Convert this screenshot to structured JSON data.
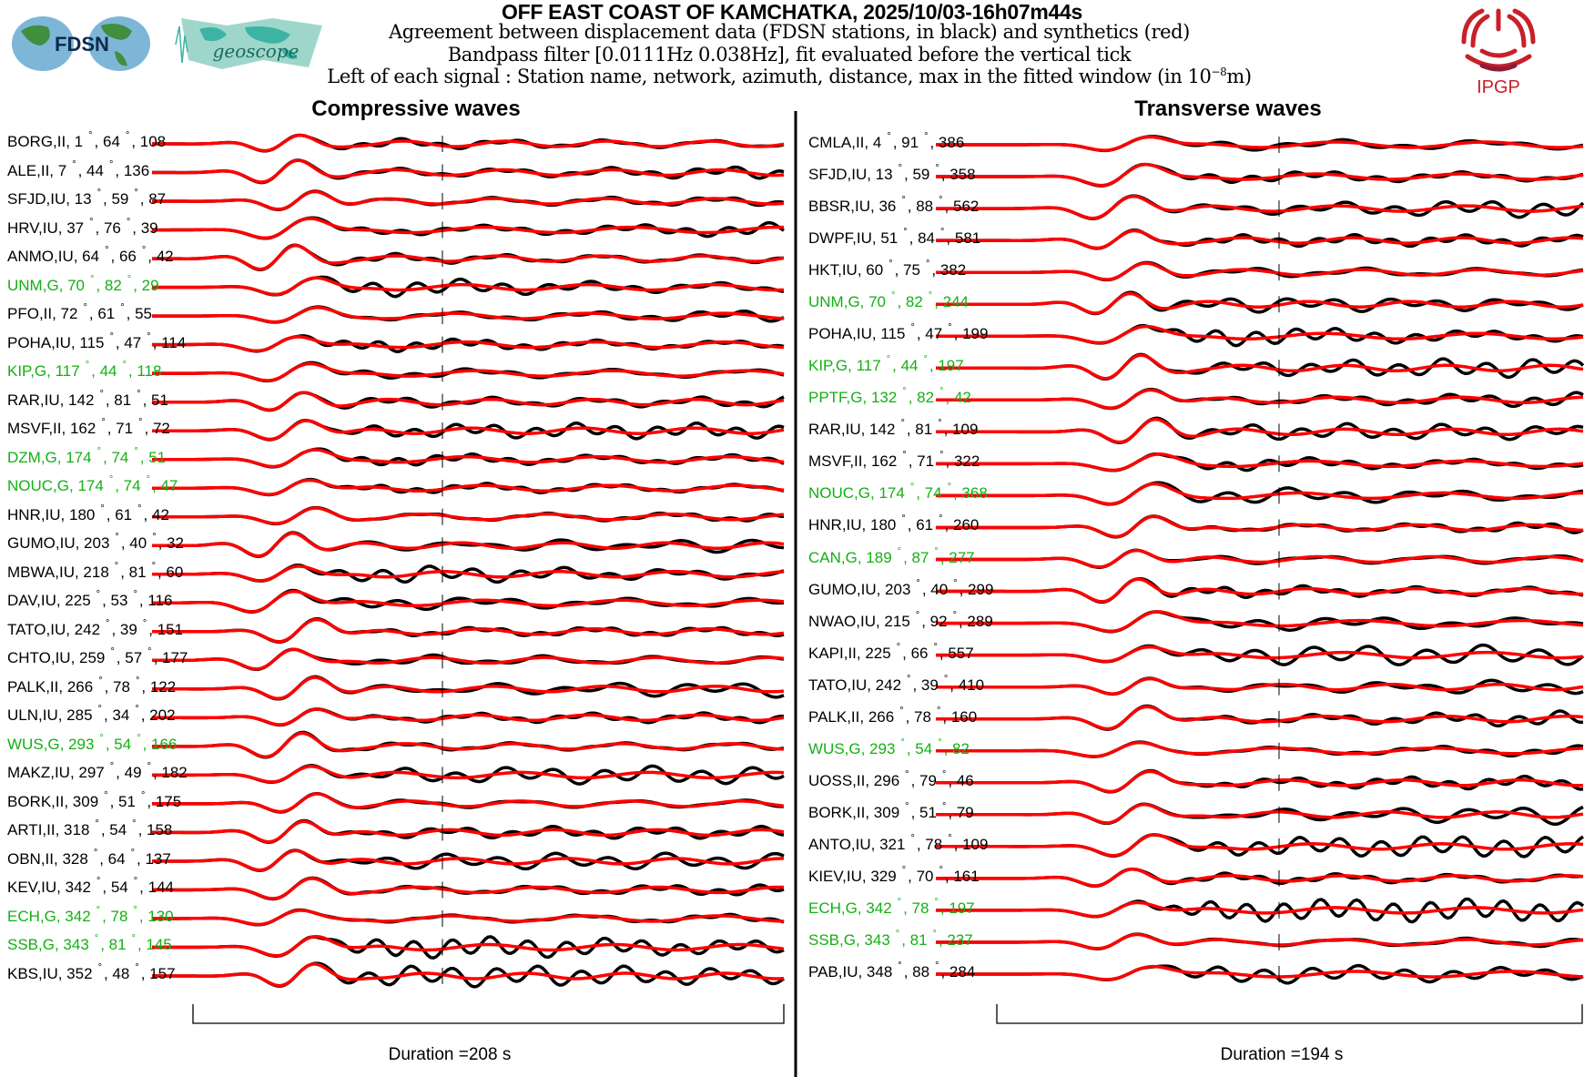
{
  "header": {
    "title": "OFF EAST COAST OF KAMCHATKA, 2025/10/03-16h07m44s",
    "line1": "Agreement between displacement data (FDSN stations, in black) and synthetics (red)",
    "line2": "Bandpass filter [0.0111Hz 0.038Hz], fit evaluated before the vertical tick",
    "line3_prefix": "Left of each signal : Station name, network, azimuth, distance, max in the fitted window (in 10",
    "line3_exp": "−8",
    "line3_suffix": "m)"
  },
  "logos": {
    "fdsn": "FDSN",
    "geoscope": "geoscope",
    "ipgp": "IPGP"
  },
  "colors": {
    "data": "#000000",
    "synthetic": "#ff0000",
    "geoscope_label": "#13b013",
    "ipgp": "#c8202a"
  },
  "degree_symbol": "°",
  "chart_data": {
    "type": "line",
    "title": "OFF EAST COAST OF KAMCHATKA, 2025/10/03-16h07m44s",
    "legend": {
      "data": "black",
      "synthetics": "red"
    },
    "filter_hz": [
      0.0111,
      0.038
    ],
    "amplitude_unit": "10^-8 m",
    "panels": [
      {
        "heading": "Compressive waves",
        "duration_label": "Duration =208 s",
        "duration_s": 208,
        "stations": [
          {
            "name": "BORG",
            "net": "II",
            "az": "1",
            "dist": "64",
            "max": "108"
          },
          {
            "name": "ALE",
            "net": "II",
            "az": "7",
            "dist": "44",
            "max": "136"
          },
          {
            "name": "SFJD",
            "net": "IU",
            "az": "13",
            "dist": "59",
            "max": "87"
          },
          {
            "name": "HRV",
            "net": "IU",
            "az": "37",
            "dist": "76",
            "max": "39"
          },
          {
            "name": "ANMO",
            "net": "IU",
            "az": "64",
            "dist": "66",
            "max": "42"
          },
          {
            "name": "UNM",
            "net": "G",
            "az": "70",
            "dist": "82",
            "max": "29"
          },
          {
            "name": "PFO",
            "net": "II",
            "az": "72",
            "dist": "61",
            "max": "55"
          },
          {
            "name": "POHA",
            "net": "IU",
            "az": "115",
            "dist": "47",
            "max": "114"
          },
          {
            "name": "KIP",
            "net": "G",
            "az": "117",
            "dist": "44",
            "max": "118"
          },
          {
            "name": "RAR",
            "net": "IU",
            "az": "142",
            "dist": "81",
            "max": "51"
          },
          {
            "name": "MSVF",
            "net": "II",
            "az": "162",
            "dist": "71",
            "max": "72"
          },
          {
            "name": "DZM",
            "net": "G",
            "az": "174",
            "dist": "74",
            "max": "51"
          },
          {
            "name": "NOUC",
            "net": "G",
            "az": "174",
            "dist": "74",
            "max": "47"
          },
          {
            "name": "HNR",
            "net": "IU",
            "az": "180",
            "dist": "61",
            "max": "42"
          },
          {
            "name": "GUMO",
            "net": "IU",
            "az": "203",
            "dist": "40",
            "max": "32"
          },
          {
            "name": "MBWA",
            "net": "IU",
            "az": "218",
            "dist": "81",
            "max": "60"
          },
          {
            "name": "DAV",
            "net": "IU",
            "az": "225",
            "dist": "53",
            "max": "116"
          },
          {
            "name": "TATO",
            "net": "IU",
            "az": "242",
            "dist": "39",
            "max": "151"
          },
          {
            "name": "CHTO",
            "net": "IU",
            "az": "259",
            "dist": "57",
            "max": "177"
          },
          {
            "name": "PALK",
            "net": "II",
            "az": "266",
            "dist": "78",
            "max": "122"
          },
          {
            "name": "ULN",
            "net": "IU",
            "az": "285",
            "dist": "34",
            "max": "202"
          },
          {
            "name": "WUS",
            "net": "G",
            "az": "293",
            "dist": "54",
            "max": "166"
          },
          {
            "name": "MAKZ",
            "net": "IU",
            "az": "297",
            "dist": "49",
            "max": "182"
          },
          {
            "name": "BORK",
            "net": "II",
            "az": "309",
            "dist": "51",
            "max": "175"
          },
          {
            "name": "ARTI",
            "net": "II",
            "az": "318",
            "dist": "54",
            "max": "158"
          },
          {
            "name": "OBN",
            "net": "II",
            "az": "328",
            "dist": "64",
            "max": "137"
          },
          {
            "name": "KEV",
            "net": "IU",
            "az": "342",
            "dist": "54",
            "max": "144"
          },
          {
            "name": "ECH",
            "net": "G",
            "az": "342",
            "dist": "78",
            "max": "130"
          },
          {
            "name": "SSB",
            "net": "G",
            "az": "343",
            "dist": "81",
            "max": "145"
          },
          {
            "name": "KBS",
            "net": "IU",
            "az": "352",
            "dist": "48",
            "max": "157"
          }
        ]
      },
      {
        "heading": "Transverse waves",
        "duration_label": "Duration =194 s",
        "duration_s": 194,
        "stations": [
          {
            "name": "CMLA",
            "net": "II",
            "az": "4",
            "dist": "91",
            "max": "386"
          },
          {
            "name": "SFJD",
            "net": "IU",
            "az": "13",
            "dist": "59",
            "max": "358"
          },
          {
            "name": "BBSR",
            "net": "IU",
            "az": "36",
            "dist": "88",
            "max": "562"
          },
          {
            "name": "DWPF",
            "net": "IU",
            "az": "51",
            "dist": "84",
            "max": "581"
          },
          {
            "name": "HKT",
            "net": "IU",
            "az": "60",
            "dist": "75",
            "max": "382"
          },
          {
            "name": "UNM",
            "net": "G",
            "az": "70",
            "dist": "82",
            "max": "244"
          },
          {
            "name": "POHA",
            "net": "IU",
            "az": "115",
            "dist": "47",
            "max": "199"
          },
          {
            "name": "KIP",
            "net": "G",
            "az": "117",
            "dist": "44",
            "max": "197"
          },
          {
            "name": "PPTF",
            "net": "G",
            "az": "132",
            "dist": "82",
            "max": "42"
          },
          {
            "name": "RAR",
            "net": "IU",
            "az": "142",
            "dist": "81",
            "max": "109"
          },
          {
            "name": "MSVF",
            "net": "II",
            "az": "162",
            "dist": "71",
            "max": "322"
          },
          {
            "name": "NOUC",
            "net": "G",
            "az": "174",
            "dist": "74",
            "max": "368"
          },
          {
            "name": "HNR",
            "net": "IU",
            "az": "180",
            "dist": "61",
            "max": "260"
          },
          {
            "name": "CAN",
            "net": "G",
            "az": "189",
            "dist": "87",
            "max": "277"
          },
          {
            "name": "GUMO",
            "net": "IU",
            "az": "203",
            "dist": "40",
            "max": "299"
          },
          {
            "name": "NWAO",
            "net": "IU",
            "az": "215",
            "dist": "92",
            "max": "289"
          },
          {
            "name": "KAPI",
            "net": "II",
            "az": "225",
            "dist": "66",
            "max": "557"
          },
          {
            "name": "TATO",
            "net": "IU",
            "az": "242",
            "dist": "39",
            "max": "410"
          },
          {
            "name": "PALK",
            "net": "II",
            "az": "266",
            "dist": "78",
            "max": "160"
          },
          {
            "name": "WUS",
            "net": "G",
            "az": "293",
            "dist": "54",
            "max": "82"
          },
          {
            "name": "UOSS",
            "net": "II",
            "az": "296",
            "dist": "79",
            "max": "46"
          },
          {
            "name": "BORK",
            "net": "II",
            "az": "309",
            "dist": "51",
            "max": "79"
          },
          {
            "name": "ANTO",
            "net": "IU",
            "az": "321",
            "dist": "78",
            "max": "109"
          },
          {
            "name": "KIEV",
            "net": "IU",
            "az": "329",
            "dist": "70",
            "max": "161"
          },
          {
            "name": "ECH",
            "net": "G",
            "az": "342",
            "dist": "78",
            "max": "197"
          },
          {
            "name": "SSB",
            "net": "G",
            "az": "343",
            "dist": "81",
            "max": "237"
          },
          {
            "name": "PAB",
            "net": "IU",
            "az": "348",
            "dist": "88",
            "max": "284"
          }
        ]
      }
    ]
  }
}
